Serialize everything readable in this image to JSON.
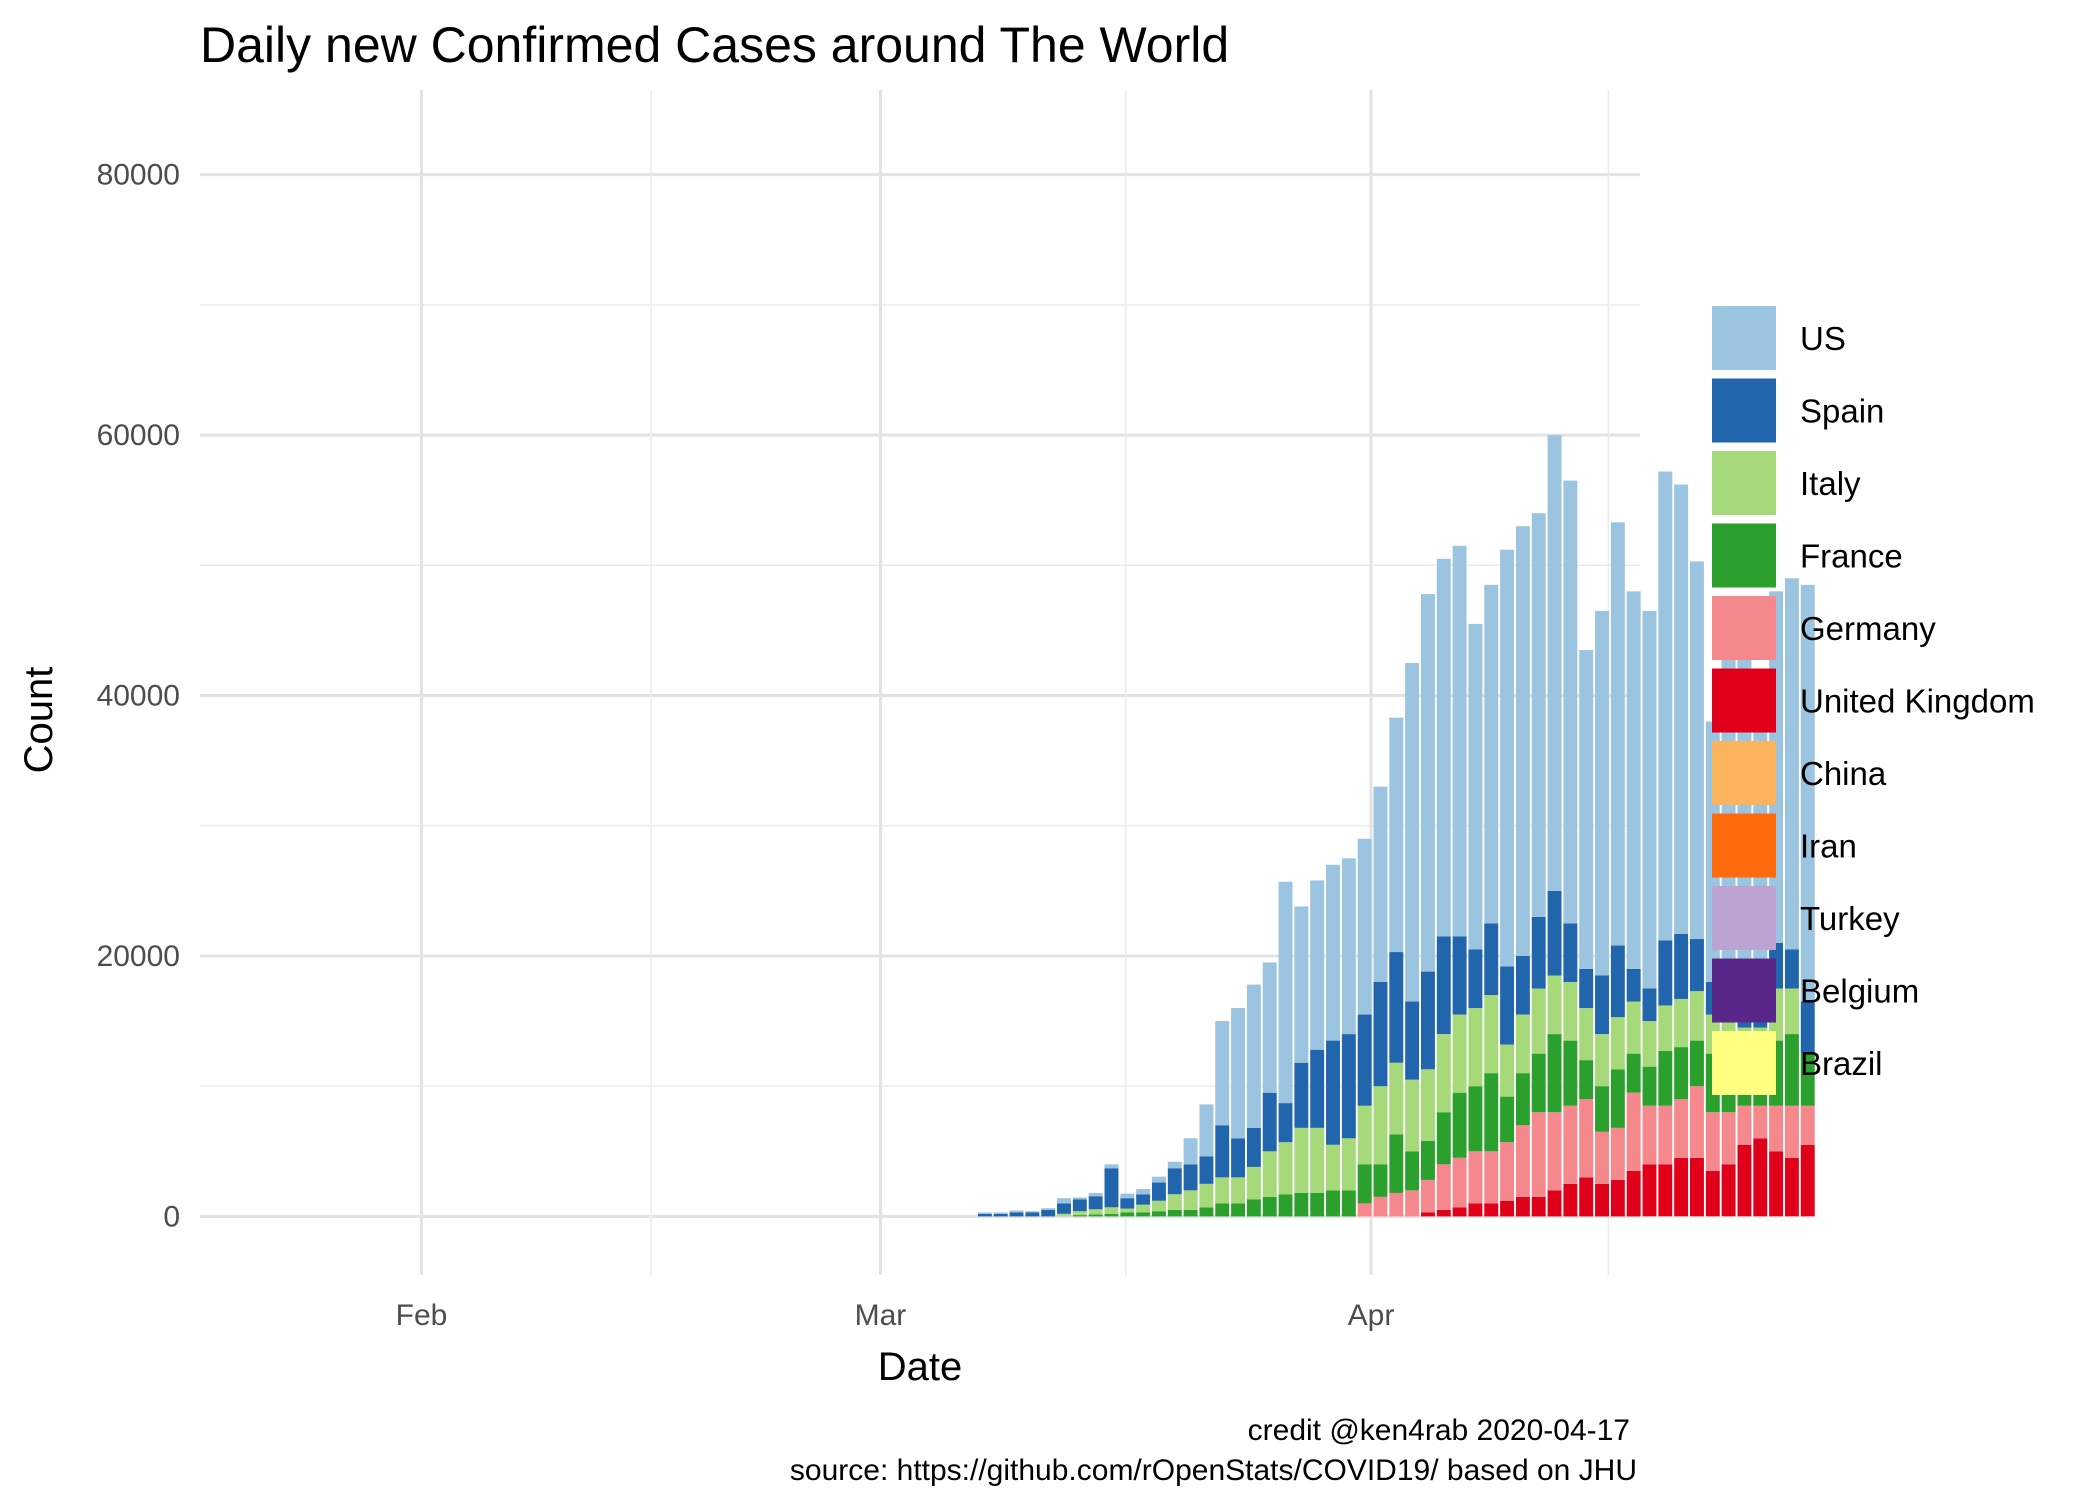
{
  "chart_data": {
    "type": "bar",
    "stacked": true,
    "title": "Daily new Confirmed Cases around The World",
    "xlabel": "Date",
    "ylabel": "Count",
    "x_ticks": [
      "Feb",
      "Mar",
      "Apr"
    ],
    "x_tick_dates": [
      "2020-02-01",
      "2020-03-01",
      "2020-04-01"
    ],
    "y_ticks": [
      0,
      20000,
      40000,
      60000,
      80000
    ],
    "y_tick_labels": [
      "0",
      "20000",
      "40000",
      "60000",
      "80000"
    ],
    "ylim": [
      -4500,
      86500
    ],
    "xlim": [
      "2020-01-18",
      "2020-04-18"
    ],
    "grid": true,
    "legend_position": "right",
    "caption_line1": "credit @ken4rab 2020-04-17",
    "caption_line2": "source: https://github.com/rOpenStats/COVID19/ based on JHU",
    "series": [
      {
        "name": "US",
        "color": "#9ac4df",
        "values": [
          0,
          0,
          0,
          0,
          0,
          0,
          0,
          0,
          0,
          0,
          0,
          0,
          0,
          0,
          0,
          0,
          0,
          0,
          0,
          0,
          0,
          0,
          0,
          0,
          0,
          0,
          0,
          0,
          0,
          0,
          0,
          0,
          0,
          0,
          0,
          0,
          0,
          0,
          0,
          0,
          0,
          0,
          0,
          0,
          100,
          100,
          150,
          100,
          130,
          400,
          150,
          250,
          300,
          350,
          400,
          450,
          500,
          2000,
          4000,
          8000,
          10000,
          11000,
          10000,
          17000,
          12000,
          13000,
          13500,
          13500,
          13500,
          15000,
          18000,
          26000,
          29000,
          29000,
          30000,
          25000,
          26000,
          32000,
          33000,
          31000,
          35000,
          34000,
          24500,
          28000,
          32500,
          29000,
          29000,
          36000,
          34500,
          29000,
          20000,
          28500,
          25500,
          23500,
          27000,
          28500,
          32000
        ]
      },
      {
        "name": "Spain",
        "color": "#2166ac",
        "values": [
          0,
          0,
          0,
          0,
          0,
          0,
          0,
          0,
          0,
          0,
          0,
          0,
          0,
          0,
          0,
          0,
          0,
          0,
          0,
          0,
          0,
          0,
          0,
          0,
          0,
          0,
          0,
          0,
          0,
          0,
          0,
          0,
          0,
          0,
          0,
          0,
          0,
          0,
          0,
          0,
          0,
          0,
          0,
          0,
          200,
          200,
          300,
          300,
          500,
          800,
          900,
          1000,
          3000,
          800,
          800,
          1400,
          2000,
          2000,
          2100,
          4000,
          3000,
          3000,
          4500,
          3000,
          5000,
          6000,
          8000,
          8000,
          7000,
          8000,
          8500,
          6000,
          7500,
          7500,
          6000,
          4500,
          5500,
          6000,
          4500,
          5500,
          6500,
          4500,
          3000,
          4500,
          5500,
          2500,
          2500,
          5000,
          5000,
          4000,
          2500,
          2500,
          4000,
          2500,
          3500,
          3000,
          4000,
          5000
        ]
      },
      {
        "name": "Italy",
        "color": "#a6d97a",
        "values": [
          0,
          0,
          0,
          0,
          0,
          0,
          0,
          0,
          0,
          0,
          0,
          0,
          0,
          0,
          0,
          0,
          0,
          0,
          0,
          0,
          0,
          0,
          0,
          0,
          0,
          0,
          0,
          0,
          0,
          0,
          0,
          0,
          0,
          0,
          0,
          0,
          0,
          0,
          0,
          0,
          0,
          0,
          0,
          0,
          0,
          0,
          0,
          0,
          0,
          200,
          300,
          400,
          500,
          300,
          600,
          800,
          1200,
          1500,
          1800,
          2000,
          2000,
          2500,
          3500,
          4000,
          5000,
          5000,
          3500,
          4000,
          4500,
          6000,
          5500,
          5500,
          5500,
          6000,
          6000,
          6000,
          6000,
          4000,
          4500,
          5000,
          4500,
          4500,
          4000,
          4000,
          4000,
          4000,
          3500,
          3500,
          3700,
          3800,
          3000,
          3200,
          3000,
          3000,
          4000,
          3500
        ]
      },
      {
        "name": "France",
        "color": "#2ca02c",
        "values": [
          0,
          0,
          0,
          0,
          0,
          0,
          0,
          0,
          0,
          0,
          0,
          0,
          0,
          0,
          0,
          0,
          0,
          0,
          0,
          0,
          0,
          0,
          0,
          0,
          0,
          0,
          0,
          0,
          0,
          0,
          0,
          0,
          0,
          0,
          0,
          0,
          0,
          0,
          0,
          0,
          0,
          0,
          0,
          0,
          0,
          0,
          0,
          0,
          0,
          0,
          100,
          150,
          200,
          300,
          300,
          400,
          500,
          500,
          700,
          1000,
          1000,
          1300,
          1500,
          1700,
          1800,
          1800,
          2000,
          2000,
          3000,
          2500,
          4500,
          3000,
          3000,
          4000,
          5000,
          5000,
          6000,
          3500,
          4000,
          4500,
          6000,
          5000,
          3000,
          3500,
          4500,
          3000,
          3000,
          4200,
          4000,
          3500,
          4500,
          5000,
          3000,
          3000,
          5000,
          5500,
          4000,
          4500,
          4000,
          4000,
          4500,
          6000,
          5000,
          4000,
          7500,
          4000
        ]
      },
      {
        "name": "Germany",
        "color": "#f4888c",
        "values": [
          0,
          0,
          0,
          0,
          0,
          0,
          0,
          0,
          0,
          0,
          0,
          0,
          0,
          0,
          0,
          0,
          0,
          0,
          0,
          0,
          0,
          0,
          0,
          0,
          0,
          0,
          0,
          0,
          0,
          0,
          0,
          0,
          0,
          0,
          0,
          0,
          0,
          0,
          0,
          0,
          0,
          0,
          0,
          0,
          0,
          0,
          0,
          0,
          0,
          0,
          0,
          0,
          0,
          0,
          0,
          0,
          0,
          0,
          0,
          0,
          0,
          0,
          0,
          0,
          0,
          0,
          0,
          0,
          1000,
          1500,
          1800,
          2000,
          2500,
          3500,
          3800,
          4000,
          4000,
          4500,
          5500,
          6500,
          6000,
          6000,
          6000,
          4000,
          4000,
          6000,
          4500,
          4500,
          4500,
          5500,
          4500,
          4000,
          3000,
          2500,
          3500,
          4000,
          3000,
          2500
        ]
      },
      {
        "name": "United Kingdom",
        "color": "#e0001a",
        "values": [
          0,
          0,
          0,
          0,
          0,
          0,
          0,
          0,
          0,
          0,
          0,
          0,
          0,
          0,
          0,
          0,
          0,
          0,
          0,
          0,
          0,
          0,
          0,
          0,
          0,
          0,
          0,
          0,
          0,
          0,
          0,
          0,
          0,
          0,
          0,
          0,
          0,
          0,
          0,
          0,
          0,
          0,
          0,
          0,
          0,
          0,
          0,
          0,
          0,
          0,
          0,
          0,
          0,
          0,
          0,
          0,
          0,
          0,
          0,
          0,
          0,
          0,
          0,
          0,
          0,
          0,
          0,
          0,
          0,
          0,
          0,
          0,
          300,
          500,
          700,
          1000,
          1000,
          1200,
          1500,
          1500,
          2000,
          2500,
          3000,
          2500,
          2800,
          3500,
          4000,
          4000,
          4500,
          4500,
          3500,
          4000,
          5500,
          6000,
          5000,
          4500,
          5500,
          5000,
          4500,
          5000,
          6000
        ]
      },
      {
        "name": "China",
        "color": "#fbb45c",
        "values": [
          0,
          0,
          0,
          0,
          0,
          0,
          0,
          0,
          0,
          0,
          0,
          0,
          0,
          0,
          0,
          0,
          0,
          0,
          0,
          0,
          0,
          0,
          0,
          0,
          0,
          0,
          0,
          0,
          0,
          0,
          0,
          0,
          0,
          0,
          0,
          0,
          0,
          0,
          0,
          0,
          0,
          0,
          0,
          0,
          0,
          0,
          0,
          0,
          0,
          0,
          0,
          0,
          0,
          0,
          0,
          0,
          0,
          0,
          0,
          0,
          0,
          0,
          0,
          0,
          0,
          0,
          0,
          0,
          0,
          0,
          0,
          0,
          0,
          0,
          0,
          0,
          0,
          0,
          0,
          0,
          0,
          0,
          0,
          0,
          0,
          0,
          0,
          0,
          0,
          0,
          0,
          0,
          0,
          0,
          0,
          0,
          0,
          0,
          0,
          0,
          0
        ]
      },
      {
        "name": "Iran",
        "color": "#ff6a0d",
        "values": [
          0,
          0,
          0,
          0,
          0,
          0,
          0,
          0,
          0,
          0,
          0,
          0,
          0,
          0,
          0,
          0,
          0,
          0,
          0,
          0,
          0,
          0,
          0,
          0,
          0,
          0,
          0,
          0,
          0,
          0,
          0,
          0,
          0,
          0,
          0,
          0,
          0,
          0,
          0,
          0,
          0,
          0,
          0,
          0,
          0,
          0,
          0,
          0,
          0,
          0,
          0,
          0,
          0,
          0,
          0,
          0,
          0,
          0,
          0,
          0,
          0,
          0,
          0,
          0,
          0,
          0,
          0,
          0,
          0,
          0,
          0,
          0,
          0,
          0,
          0,
          0,
          0,
          0,
          0,
          0,
          0,
          0,
          0,
          0,
          0,
          0,
          0,
          0,
          0,
          0,
          0,
          0,
          0,
          0,
          0,
          0,
          0,
          0,
          0,
          0,
          0
        ]
      },
      {
        "name": "Turkey",
        "color": "#bca3d1",
        "values": [
          0,
          0,
          0,
          0,
          0,
          0,
          0,
          0,
          0,
          0,
          0,
          0,
          0,
          0,
          0,
          0,
          0,
          0,
          0,
          0,
          0,
          0,
          0,
          0,
          0,
          0,
          0,
          0,
          0,
          0,
          0,
          0,
          0,
          0,
          0,
          0,
          0,
          0,
          0,
          0,
          0,
          0,
          0,
          0,
          0,
          0,
          0,
          0,
          0,
          0,
          0,
          0,
          0,
          0,
          0,
          0,
          0,
          0,
          0,
          0,
          0,
          0,
          0,
          0,
          0,
          0,
          0,
          0,
          0,
          0,
          0,
          0,
          0,
          0,
          0,
          0,
          0,
          0,
          0,
          0,
          0,
          0,
          0,
          0,
          0,
          0,
          0,
          0,
          0,
          0,
          0,
          0,
          0,
          0,
          0,
          0,
          0,
          0,
          0,
          0,
          0
        ]
      },
      {
        "name": "Belgium",
        "color": "#59268a",
        "values": [
          0,
          0,
          0,
          0,
          0,
          0,
          0,
          0,
          0,
          0,
          0,
          0,
          0,
          0,
          0,
          0,
          0,
          0,
          0,
          0,
          0,
          0,
          0,
          0,
          0,
          0,
          0,
          0,
          0,
          0,
          0,
          0,
          0,
          0,
          0,
          0,
          0,
          0,
          0,
          0,
          0,
          0,
          0,
          0,
          0,
          0,
          0,
          0,
          0,
          0,
          0,
          0,
          0,
          0,
          0,
          0,
          0,
          0,
          0,
          0,
          0,
          0,
          0,
          0,
          0,
          0,
          0,
          0,
          0,
          0,
          0,
          0,
          0,
          0,
          0,
          0,
          0,
          0,
          0,
          0,
          0,
          0,
          0,
          0,
          0,
          0,
          0,
          0,
          0,
          0,
          0,
          0,
          0,
          0,
          0,
          0,
          0,
          0,
          0,
          0,
          0
        ]
      },
      {
        "name": "Brazil",
        "color": "#ffff80",
        "values": [
          0,
          0,
          0,
          0,
          0,
          0,
          0,
          0,
          0,
          0,
          0,
          0,
          0,
          0,
          0,
          0,
          0,
          0,
          0,
          0,
          0,
          0,
          0,
          0,
          0,
          0,
          0,
          0,
          0,
          0,
          0,
          0,
          0,
          0,
          0,
          0,
          0,
          0,
          0,
          0,
          0,
          0,
          0,
          0,
          0,
          0,
          0,
          0,
          0,
          0,
          0,
          0,
          0,
          0,
          0,
          0,
          0,
          0,
          0,
          0,
          0,
          0,
          0,
          0,
          0,
          0,
          0,
          0,
          0,
          0,
          0,
          0,
          0,
          0,
          0,
          0,
          0,
          0,
          0,
          0,
          0,
          0,
          0,
          0,
          0,
          0,
          0,
          0,
          0,
          0,
          0,
          0,
          0,
          0,
          0,
          0,
          0,
          0,
          0,
          0,
          0
        ]
      }
    ],
    "legend": [
      "US",
      "Spain",
      "Italy",
      "France",
      "Germany",
      "United Kingdom",
      "China",
      "Iran",
      "Turkey",
      "Belgium",
      "Brazil"
    ]
  }
}
